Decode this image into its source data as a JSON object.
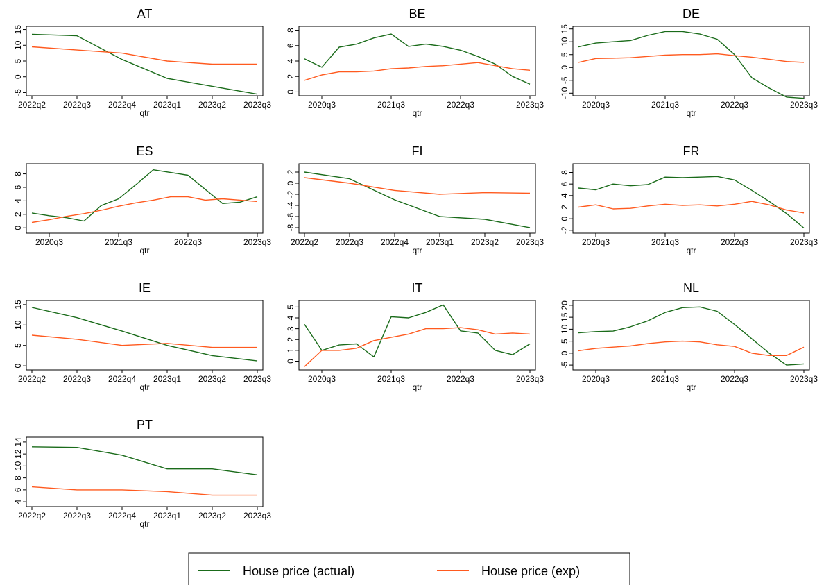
{
  "colors": {
    "actual": "#1a6b1a",
    "exp": "#ff5a1f"
  },
  "legend": {
    "actual_label": "House price (actual)",
    "exp_label": "House price (exp)"
  },
  "chart_data": [
    {
      "type": "line",
      "title": "AT",
      "xlabel": "qtr",
      "x": [
        "2022q2",
        "2022q3",
        "2022q4",
        "2023q1",
        "2023q2",
        "2023q3"
      ],
      "ylim": [
        -6,
        16
      ],
      "yticks": [
        -5,
        0,
        5,
        10,
        15
      ],
      "xticks": [
        "2022q2",
        "2022q3",
        "2022q4",
        "2023q1",
        "2023q2",
        "2023q3"
      ],
      "series": [
        {
          "name": "House price (actual)",
          "values": [
            13.5,
            13.0,
            5.5,
            -0.5,
            -3.0,
            -5.5
          ]
        },
        {
          "name": "House price (exp)",
          "values": [
            9.5,
            8.5,
            7.5,
            5.0,
            4.0,
            4.0
          ]
        }
      ]
    },
    {
      "type": "line",
      "title": "BE",
      "xlabel": "qtr",
      "x": [
        "2020q2",
        "2020q3",
        "2020q4",
        "2021q1",
        "2021q2",
        "2021q3",
        "2021q4",
        "2022q1",
        "2022q2",
        "2022q3",
        "2022q4",
        "2023q1",
        "2023q2",
        "2023q3"
      ],
      "ylim": [
        -0.5,
        8.5
      ],
      "yticks": [
        0,
        2,
        4,
        6,
        8
      ],
      "xticks": [
        "2020q3",
        "2021q3",
        "2022q3",
        "2023q3"
      ],
      "series": [
        {
          "name": "House price (actual)",
          "values": [
            4.3,
            3.2,
            5.8,
            6.2,
            7.0,
            7.5,
            5.9,
            6.2,
            5.9,
            5.4,
            4.6,
            3.6,
            2.0,
            1.0
          ]
        },
        {
          "name": "House price (exp)",
          "values": [
            1.5,
            2.2,
            2.6,
            2.6,
            2.7,
            3.0,
            3.1,
            3.3,
            3.4,
            3.6,
            3.8,
            3.4,
            3.0,
            2.8
          ]
        }
      ]
    },
    {
      "type": "line",
      "title": "DE",
      "xlabel": "qtr",
      "x": [
        "2020q2",
        "2020q3",
        "2020q4",
        "2021q1",
        "2021q2",
        "2021q3",
        "2021q4",
        "2022q1",
        "2022q2",
        "2022q3",
        "2022q4",
        "2023q1",
        "2023q2",
        "2023q3"
      ],
      "ylim": [
        -11,
        16
      ],
      "yticks": [
        -10,
        -5,
        0,
        5,
        10,
        15
      ],
      "xticks": [
        "2020q3",
        "2021q3",
        "2022q3",
        "2023q3"
      ],
      "series": [
        {
          "name": "House price (actual)",
          "values": [
            8.0,
            9.5,
            10.0,
            10.5,
            12.5,
            14.0,
            14.0,
            13.0,
            11.0,
            5.0,
            -4.0,
            -8.0,
            -11.5,
            -12.0
          ]
        },
        {
          "name": "House price (exp)",
          "values": [
            2.0,
            3.5,
            3.6,
            3.8,
            4.3,
            4.8,
            5.0,
            5.0,
            5.3,
            4.6,
            4.0,
            3.2,
            2.3,
            2.0
          ]
        }
      ]
    },
    {
      "type": "line",
      "title": "ES",
      "xlabel": "qtr",
      "x": [
        "2020q2",
        "2020q3",
        "2020q4",
        "2021q1",
        "2021q2",
        "2021q3",
        "2021q4",
        "2022q1",
        "2022q2",
        "2022q3",
        "2022q4",
        "2023q1",
        "2023q2",
        "2023q3"
      ],
      "ylim": [
        -0.8,
        9.5
      ],
      "yticks": [
        0,
        2,
        4,
        6,
        8
      ],
      "xticks": [
        "2020q3",
        "2021q3",
        "2022q3",
        "2023q3"
      ],
      "series": [
        {
          "name": "House price (actual)",
          "values": [
            2.2,
            1.8,
            1.5,
            1.0,
            3.3,
            4.3,
            6.4,
            8.6,
            8.2,
            7.8,
            5.7,
            3.6,
            3.8,
            4.6
          ]
        },
        {
          "name": "House price (exp)",
          "values": [
            0.8,
            1.2,
            1.7,
            2.1,
            2.6,
            3.2,
            3.7,
            4.1,
            4.6,
            4.6,
            4.1,
            4.3,
            4.1,
            3.9
          ]
        }
      ]
    },
    {
      "type": "line",
      "title": "FI",
      "xlabel": "qtr",
      "x": [
        "2022q2",
        "2022q3",
        "2022q4",
        "2023q1",
        "2023q2",
        "2023q3"
      ],
      "ylim": [
        -9,
        3.5
      ],
      "yticks": [
        -8,
        -6,
        -4,
        -2,
        0,
        2
      ],
      "xticks": [
        "2022q2",
        "2022q3",
        "2022q4",
        "2023q1",
        "2023q2",
        "2023q3"
      ],
      "series": [
        {
          "name": "House price (actual)",
          "values": [
            2.0,
            0.8,
            -3.0,
            -6.0,
            -6.5,
            -8.0
          ]
        },
        {
          "name": "House price (exp)",
          "values": [
            1.0,
            0.0,
            -1.3,
            -2.0,
            -1.7,
            -1.8
          ]
        }
      ]
    },
    {
      "type": "line",
      "title": "FR",
      "xlabel": "qtr",
      "x": [
        "2020q2",
        "2020q3",
        "2020q4",
        "2021q1",
        "2021q2",
        "2021q3",
        "2021q4",
        "2022q1",
        "2022q2",
        "2022q3",
        "2022q4",
        "2023q1",
        "2023q2",
        "2023q3"
      ],
      "ylim": [
        -2.5,
        9.5
      ],
      "yticks": [
        -2,
        0,
        2,
        4,
        6,
        8
      ],
      "xticks": [
        "2020q3",
        "2021q3",
        "2022q3",
        "2023q3"
      ],
      "series": [
        {
          "name": "House price (actual)",
          "values": [
            5.3,
            5.0,
            6.0,
            5.7,
            5.9,
            7.2,
            7.1,
            7.2,
            7.3,
            6.7,
            4.9,
            3.0,
            0.9,
            -1.6
          ]
        },
        {
          "name": "House price (exp)",
          "values": [
            2.0,
            2.4,
            1.7,
            1.8,
            2.2,
            2.5,
            2.3,
            2.4,
            2.2,
            2.5,
            3.0,
            2.4,
            1.5,
            1.0
          ]
        }
      ]
    },
    {
      "type": "line",
      "title": "IE",
      "xlabel": "qtr",
      "x": [
        "2022q2",
        "2022q3",
        "2022q4",
        "2023q1",
        "2023q2",
        "2023q3"
      ],
      "ylim": [
        -1,
        16
      ],
      "yticks": [
        0,
        5,
        10,
        15
      ],
      "xticks": [
        "2022q2",
        "2022q3",
        "2022q4",
        "2023q1",
        "2023q2",
        "2023q3"
      ],
      "series": [
        {
          "name": "House price (actual)",
          "values": [
            14.3,
            11.8,
            8.5,
            5.0,
            2.5,
            1.2
          ]
        },
        {
          "name": "House price (exp)",
          "values": [
            7.5,
            6.5,
            5.0,
            5.5,
            4.5,
            4.5
          ]
        }
      ]
    },
    {
      "type": "line",
      "title": "IT",
      "xlabel": "qtr",
      "x": [
        "2020q2",
        "2020q3",
        "2020q4",
        "2021q1",
        "2021q2",
        "2021q3",
        "2021q4",
        "2022q1",
        "2022q2",
        "2022q3",
        "2022q4",
        "2023q1",
        "2023q2",
        "2023q3"
      ],
      "ylim": [
        -0.8,
        5.6
      ],
      "yticks": [
        0,
        1,
        2,
        3,
        4,
        5
      ],
      "xticks": [
        "2020q3",
        "2021q3",
        "2022q3",
        "2023q3"
      ],
      "series": [
        {
          "name": "House price (actual)",
          "values": [
            3.4,
            1.0,
            1.5,
            1.6,
            0.4,
            4.1,
            4.0,
            4.5,
            5.2,
            2.8,
            2.6,
            1.0,
            0.6,
            1.6
          ]
        },
        {
          "name": "House price (exp)",
          "values": [
            -0.5,
            1.0,
            1.0,
            1.2,
            1.9,
            2.2,
            2.5,
            3.0,
            3.0,
            3.1,
            2.9,
            2.5,
            2.6,
            2.5
          ]
        }
      ]
    },
    {
      "type": "line",
      "title": "NL",
      "xlabel": "qtr",
      "x": [
        "2020q2",
        "2020q3",
        "2020q4",
        "2021q1",
        "2021q2",
        "2021q3",
        "2021q4",
        "2022q1",
        "2022q2",
        "2022q3",
        "2022q4",
        "2023q1",
        "2023q2",
        "2023q3"
      ],
      "ylim": [
        -7,
        22
      ],
      "yticks": [
        -5,
        0,
        5,
        10,
        15,
        20
      ],
      "xticks": [
        "2020q3",
        "2021q3",
        "2022q3",
        "2023q3"
      ],
      "series": [
        {
          "name": "House price (actual)",
          "values": [
            8.5,
            9.0,
            9.2,
            11.0,
            13.5,
            17.0,
            19.0,
            19.3,
            17.5,
            12.0,
            6.0,
            0.0,
            -5.0,
            -4.5
          ]
        },
        {
          "name": "House price (exp)",
          "values": [
            1.0,
            2.0,
            2.5,
            3.0,
            4.0,
            4.7,
            5.0,
            4.7,
            3.5,
            2.8,
            0.0,
            -1.0,
            -1.0,
            2.5
          ]
        }
      ]
    },
    {
      "type": "line",
      "title": "PT",
      "xlabel": "qtr",
      "x": [
        "2022q2",
        "2022q3",
        "2022q4",
        "2023q1",
        "2023q2",
        "2023q3"
      ],
      "ylim": [
        3.2,
        14.8
      ],
      "yticks": [
        4,
        6,
        8,
        10,
        12,
        14
      ],
      "xticks": [
        "2022q2",
        "2022q3",
        "2022q4",
        "2023q1",
        "2023q2",
        "2023q3"
      ],
      "series": [
        {
          "name": "House price (actual)",
          "values": [
            13.2,
            13.1,
            11.8,
            9.5,
            9.5,
            8.5
          ]
        },
        {
          "name": "House price (exp)",
          "values": [
            6.5,
            6.0,
            6.0,
            5.7,
            5.1,
            5.1
          ]
        }
      ]
    }
  ]
}
